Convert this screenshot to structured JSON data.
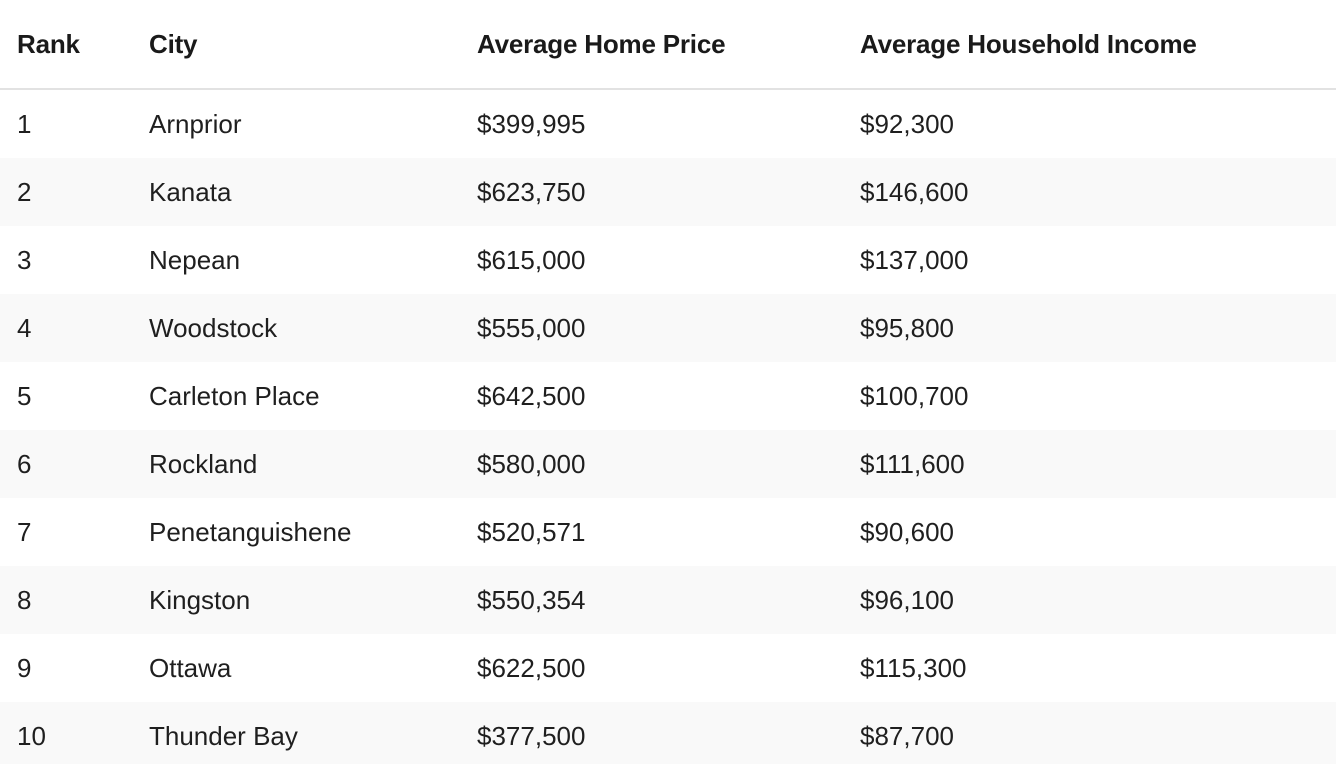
{
  "table": {
    "headers": {
      "rank": "Rank",
      "city": "City",
      "price": "Average Home Price",
      "income": "Average Household Income"
    },
    "rows": [
      {
        "rank": "1",
        "city": "Arnprior",
        "price": "$399,995",
        "income": "$92,300"
      },
      {
        "rank": "2",
        "city": "Kanata",
        "price": "$623,750",
        "income": "$146,600"
      },
      {
        "rank": "3",
        "city": "Nepean",
        "price": "$615,000",
        "income": "$137,000"
      },
      {
        "rank": "4",
        "city": "Woodstock",
        "price": "$555,000",
        "income": "$95,800"
      },
      {
        "rank": "5",
        "city": "Carleton Place",
        "price": "$642,500",
        "income": "$100,700"
      },
      {
        "rank": "6",
        "city": "Rockland",
        "price": "$580,000",
        "income": "$111,600"
      },
      {
        "rank": "7",
        "city": "Penetanguishene",
        "price": "$520,571",
        "income": "$90,600"
      },
      {
        "rank": "8",
        "city": "Kingston",
        "price": "$550,354",
        "income": "$96,100"
      },
      {
        "rank": "9",
        "city": "Ottawa",
        "price": "$622,500",
        "income": "$115,300"
      },
      {
        "rank": "10",
        "city": "Thunder Bay",
        "price": "$377,500",
        "income": "$87,700"
      }
    ]
  }
}
